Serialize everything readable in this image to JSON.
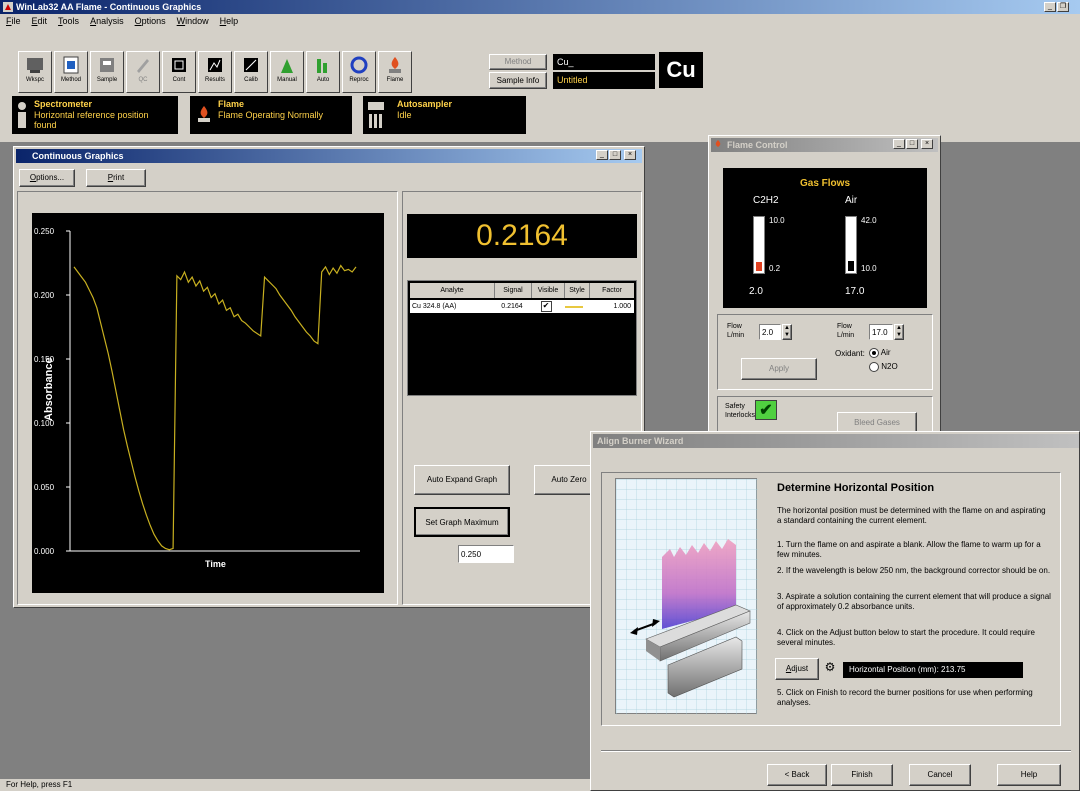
{
  "app": {
    "title": "WinLab32 AA Flame - Continuous Graphics",
    "menu": [
      "File",
      "Edit",
      "Tools",
      "Analysis",
      "Options",
      "Window",
      "Help"
    ],
    "status_bar": "For Help, press F1"
  },
  "toolbar": {
    "buttons": [
      "Wkspc",
      "Method",
      "Sample",
      "QC",
      "Cont",
      "Results",
      "Calib",
      "Manual",
      "Auto",
      "Reproc",
      "Flame"
    ],
    "method_label": "Method",
    "sample_info_label": "Sample Info",
    "method_value": "Cu_",
    "sample_value": "Untitled",
    "element": "Cu"
  },
  "status_panels": [
    {
      "title": "Spectrometer",
      "line1": "Horizontal reference position",
      "line2": "found"
    },
    {
      "title": "Flame",
      "line1": "Flame Operating Normally",
      "line2": ""
    },
    {
      "title": "Autosampler",
      "line1": "Idle",
      "line2": ""
    }
  ],
  "graphics_window": {
    "title": "Continuous Graphics",
    "options_label": "Options...",
    "print_label": "Print",
    "current_value": "0.2164",
    "table": {
      "headers": [
        "Analyte",
        "Signal",
        "Visible",
        "Style",
        "Factor"
      ],
      "rows": [
        {
          "analyte": "Cu 324.8 (AA)",
          "signal": "0.2164",
          "visible": true,
          "factor": "1.000"
        }
      ]
    },
    "auto_expand_label": "Auto Expand Graph",
    "auto_zero_label": "Auto Zero",
    "set_max_label": "Set Graph Maximum",
    "graph_max_value": "0.250"
  },
  "chart_data": {
    "type": "line",
    "title": "",
    "xlabel": "Time",
    "ylabel": "Absorbance",
    "ylim": [
      0.0,
      0.25
    ],
    "yticks": [
      "0.250",
      "0.200",
      "0.150",
      "0.100",
      "0.050",
      "0.000"
    ],
    "colors": {
      "line": "#c8b020",
      "background": "#000000",
      "axes": "#ffffff"
    },
    "series": [
      {
        "values": [
          0.222,
          0.218,
          0.214,
          0.21,
          0.204,
          0.198,
          0.19,
          0.178,
          0.166,
          0.154,
          0.14,
          0.125,
          0.11,
          0.095,
          0.082,
          0.07,
          0.058,
          0.047,
          0.037,
          0.028,
          0.02,
          0.013,
          0.008,
          0.004,
          0.002,
          0.001,
          0.002,
          0.215,
          0.212,
          0.218,
          0.21,
          0.214,
          0.207,
          0.211,
          0.203,
          0.206,
          0.198,
          0.201,
          0.193,
          0.196,
          0.188,
          0.19,
          0.183,
          0.185,
          0.18,
          0.178,
          0.175,
          0.172,
          0.17,
          0.168,
          0.214,
          0.211,
          0.208,
          0.205,
          0.2,
          0.196,
          0.192,
          0.188,
          0.183,
          0.179,
          0.175,
          0.171,
          0.168,
          0.164,
          0.162,
          0.218,
          0.222,
          0.216,
          0.221,
          0.217,
          0.223,
          0.219,
          0.22,
          0.218,
          0.222
        ]
      }
    ]
  },
  "flame_control": {
    "title": "Flame Control",
    "gas_flows_title": "Gas Flows",
    "c2h2": {
      "name": "C2H2",
      "max": "10.0",
      "min": "0.2",
      "value": "2.0",
      "fill_fraction": 0.18
    },
    "air": {
      "name": "Air",
      "max": "42.0",
      "min": "10.0",
      "value": "17.0",
      "fill_fraction": 0.2
    },
    "flow_c2h2_label": "Flow L/min",
    "flow_c2h2_value": "2.0",
    "flow_air_label": "Flow L/min",
    "flow_air_value": "17.0",
    "oxidant_label": "Oxidant:",
    "oxidant_options": [
      "Air",
      "N2O"
    ],
    "oxidant_selected": "Air",
    "apply_label": "Apply",
    "safety_label": "Safety Interlocks",
    "bleed_label": "Bleed Gases"
  },
  "wizard": {
    "title": "Align Burner Wizard",
    "heading": "Determine Horizontal Position",
    "intro": "The horizontal position must be determined with the flame on and aspirating a standard containing the current element.",
    "steps": [
      "1. Turn the flame on and aspirate a blank.  Allow the flame to warm up for a few minutes.",
      "2. If the wavelength is below 250 nm, the background corrector should be on.",
      "3. Aspirate a solution containing the current element that will produce a signal of approximately 0.2 absorbance units.",
      "4. Click on the Adjust button below to start the procedure. It could require several minutes."
    ],
    "adjust_label": "Adjust",
    "position_readout": "Horizontal Position (mm):  213.75",
    "step5": "5. Click on Finish to record the burner positions for use when performing analyses.",
    "back_label": "< Back",
    "finish_label": "Finish",
    "cancel_label": "Cancel",
    "help_label": "Help"
  }
}
